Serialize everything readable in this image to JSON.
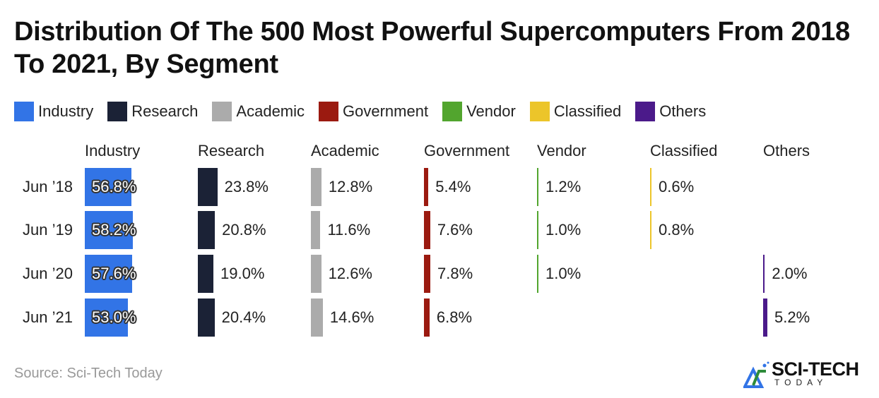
{
  "title": "Distribution Of The 500 Most Powerful Supercomputers From 2018 To 2021, By Segment",
  "source": "Source: Sci-Tech Today",
  "logo_text": {
    "line1": "SCI-TECH",
    "line2": "TODAY"
  },
  "chart_data": {
    "type": "bar",
    "title": "Distribution Of The 500 Most Powerful Supercomputers From 2018 To 2021, By Segment",
    "categories": [
      "Jun ’18",
      "Jun ’19",
      "Jun ’20",
      "Jun ’21"
    ],
    "legend_placement": "top-left",
    "grid": false,
    "series": [
      {
        "name": "Industry",
        "color": "#3274e6",
        "values": [
          56.8,
          58.2,
          57.6,
          53.0
        ],
        "labels": [
          "56.8%",
          "58.2%",
          "57.6%",
          "53.0%"
        ]
      },
      {
        "name": "Research",
        "color": "#1b2236",
        "values": [
          23.8,
          20.8,
          19.0,
          20.4
        ],
        "labels": [
          "23.8%",
          "20.8%",
          "19.0%",
          "20.4%"
        ]
      },
      {
        "name": "Academic",
        "color": "#ababab",
        "values": [
          12.8,
          11.6,
          12.6,
          14.6
        ],
        "labels": [
          "12.8%",
          "11.6%",
          "12.6%",
          "14.6%"
        ]
      },
      {
        "name": "Government",
        "color": "#9b1a10",
        "values": [
          5.4,
          7.6,
          7.8,
          6.8
        ],
        "labels": [
          "5.4%",
          "7.6%",
          "7.8%",
          "6.8%"
        ]
      },
      {
        "name": "Vendor",
        "color": "#52a52e",
        "values": [
          1.2,
          1.0,
          1.0,
          null
        ],
        "labels": [
          "1.2%",
          "1.0%",
          "1.0%",
          null
        ]
      },
      {
        "name": "Classified",
        "color": "#ecc52a",
        "values": [
          0.6,
          0.8,
          null,
          null
        ],
        "labels": [
          "0.6%",
          "0.8%",
          null,
          null
        ]
      },
      {
        "name": "Others",
        "color": "#4b1a8a",
        "values": [
          null,
          null,
          2.0,
          5.2
        ],
        "labels": [
          null,
          null,
          "2.0%",
          "5.2%"
        ]
      }
    ]
  }
}
